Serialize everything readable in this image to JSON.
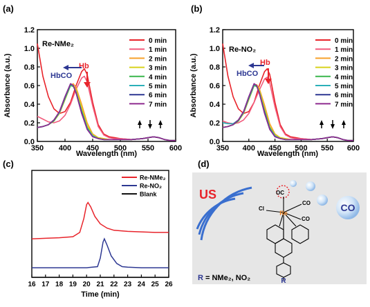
{
  "panels": {
    "a": {
      "label": "(a)",
      "name": "Re-NMe₂",
      "hb": "Hb",
      "hbco": "HbCO"
    },
    "b": {
      "label": "(b)",
      "name": "Re-NO₂",
      "hb": "Hb",
      "hbco": "HbCO"
    },
    "c": {
      "label": "(c)"
    },
    "d": {
      "label": "(d)",
      "us": "US",
      "co_bubble": "CO",
      "oc": "OC",
      "co1": "CO",
      "co2": "CO",
      "cl": "Cl",
      "re": "Re",
      "r_group": "R",
      "r_def_r": "R",
      "r_def_rest": "= NMe₂, NO₂"
    }
  },
  "legend_times": [
    "0 min",
    "1 min",
    "2 min",
    "3 min",
    "4 min",
    "5 min",
    "6 min",
    "7 min"
  ],
  "colors": {
    "times": [
      "#e8232a",
      "#f25b7c",
      "#f7a02a",
      "#d8d21b",
      "#39b54a",
      "#2ab0b8",
      "#2c3792",
      "#8e2a8f"
    ],
    "re_nme2": "#e8232a",
    "re_no2": "#2c3792",
    "blank": "#111111",
    "arrow_blue": "#2c3792",
    "arrow_red": "#e8232a",
    "scheme_bg": "#e6e6e6"
  },
  "chart_data": [
    {
      "type": "line",
      "panel": "a",
      "title": "",
      "xlabel": "Wavelength (nm)",
      "ylabel": "Absorbance (a.u.)",
      "xlim": [
        350,
        600
      ],
      "ylim": [
        0,
        1.2
      ],
      "xticks": [
        350,
        400,
        450,
        500,
        550,
        600
      ],
      "yticks": [
        0.0,
        0.2,
        0.4,
        0.6,
        0.8,
        1.0,
        1.2
      ],
      "series": [
        {
          "name": "0 min",
          "x": [
            350,
            360,
            370,
            380,
            390,
            400,
            410,
            420,
            430,
            435,
            440,
            450,
            460,
            470,
            480,
            490,
            500,
            520,
            540,
            550,
            560,
            570,
            580,
            590,
            600
          ],
          "y": [
            1.05,
            0.7,
            0.48,
            0.35,
            0.3,
            0.32,
            0.42,
            0.6,
            0.75,
            0.78,
            0.72,
            0.42,
            0.18,
            0.08,
            0.05,
            0.04,
            0.03,
            0.02,
            0.03,
            0.04,
            0.05,
            0.04,
            0.02,
            0.01,
            0.01
          ]
        },
        {
          "name": "1 min",
          "x": [
            350,
            360,
            370,
            380,
            390,
            400,
            410,
            420,
            430,
            435,
            440,
            450,
            460,
            470,
            480,
            490,
            500,
            520,
            540,
            550,
            560,
            570,
            580,
            590,
            600
          ],
          "y": [
            0.27,
            0.24,
            0.21,
            0.2,
            0.22,
            0.28,
            0.4,
            0.56,
            0.68,
            0.7,
            0.64,
            0.38,
            0.16,
            0.07,
            0.04,
            0.03,
            0.03,
            0.02,
            0.03,
            0.04,
            0.05,
            0.04,
            0.02,
            0.01,
            0.01
          ]
        },
        {
          "name": "2 min",
          "x": [
            350,
            360,
            370,
            380,
            390,
            400,
            410,
            415,
            420,
            430,
            440,
            450,
            460,
            470,
            480,
            490,
            500,
            520,
            540,
            550,
            560,
            570,
            580,
            590,
            600
          ],
          "y": [
            0.15,
            0.16,
            0.18,
            0.22,
            0.3,
            0.45,
            0.6,
            0.62,
            0.58,
            0.4,
            0.2,
            0.08,
            0.04,
            0.03,
            0.02,
            0.02,
            0.02,
            0.02,
            0.03,
            0.04,
            0.05,
            0.04,
            0.02,
            0.01,
            0.01
          ]
        },
        {
          "name": "3 min",
          "x": [
            350,
            360,
            370,
            380,
            390,
            400,
            410,
            415,
            420,
            430,
            440,
            450,
            460,
            470,
            480,
            490,
            500,
            520,
            540,
            550,
            560,
            570,
            580,
            590,
            600
          ],
          "y": [
            0.15,
            0.16,
            0.18,
            0.22,
            0.3,
            0.45,
            0.6,
            0.6,
            0.55,
            0.36,
            0.17,
            0.07,
            0.04,
            0.03,
            0.02,
            0.02,
            0.02,
            0.02,
            0.03,
            0.04,
            0.05,
            0.04,
            0.02,
            0.01,
            0.01
          ]
        },
        {
          "name": "4 min",
          "x": [
            350,
            360,
            370,
            380,
            390,
            400,
            410,
            415,
            420,
            430,
            440,
            450,
            460,
            470,
            480,
            490,
            500,
            520,
            540,
            550,
            560,
            570,
            580,
            590,
            600
          ],
          "y": [
            0.15,
            0.16,
            0.18,
            0.22,
            0.31,
            0.46,
            0.6,
            0.59,
            0.53,
            0.33,
            0.15,
            0.06,
            0.03,
            0.02,
            0.02,
            0.02,
            0.02,
            0.02,
            0.03,
            0.04,
            0.05,
            0.04,
            0.02,
            0.01,
            0.01
          ]
        },
        {
          "name": "5 min",
          "x": [
            350,
            360,
            370,
            380,
            390,
            400,
            410,
            415,
            420,
            430,
            440,
            450,
            460,
            470,
            480,
            490,
            500,
            520,
            540,
            550,
            560,
            570,
            580,
            590,
            600
          ],
          "y": [
            0.15,
            0.16,
            0.18,
            0.23,
            0.31,
            0.47,
            0.61,
            0.6,
            0.53,
            0.32,
            0.14,
            0.06,
            0.03,
            0.02,
            0.02,
            0.02,
            0.02,
            0.02,
            0.03,
            0.04,
            0.05,
            0.04,
            0.02,
            0.01,
            0.01
          ]
        },
        {
          "name": "6 min",
          "x": [
            350,
            360,
            370,
            380,
            390,
            400,
            410,
            415,
            420,
            430,
            440,
            450,
            460,
            470,
            480,
            490,
            500,
            520,
            540,
            550,
            560,
            570,
            580,
            590,
            600
          ],
          "y": [
            0.15,
            0.16,
            0.18,
            0.23,
            0.32,
            0.48,
            0.62,
            0.6,
            0.52,
            0.31,
            0.13,
            0.05,
            0.03,
            0.02,
            0.02,
            0.02,
            0.02,
            0.02,
            0.03,
            0.04,
            0.05,
            0.04,
            0.02,
            0.01,
            0.01
          ]
        },
        {
          "name": "7 min",
          "x": [
            350,
            360,
            370,
            380,
            390,
            400,
            410,
            415,
            420,
            430,
            440,
            450,
            460,
            470,
            480,
            490,
            500,
            520,
            540,
            550,
            560,
            570,
            580,
            590,
            600
          ],
          "y": [
            0.15,
            0.16,
            0.18,
            0.23,
            0.32,
            0.48,
            0.62,
            0.6,
            0.52,
            0.3,
            0.13,
            0.05,
            0.03,
            0.02,
            0.02,
            0.02,
            0.02,
            0.02,
            0.03,
            0.04,
            0.05,
            0.04,
            0.02,
            0.01,
            0.01
          ]
        }
      ]
    },
    {
      "type": "line",
      "panel": "b",
      "title": "",
      "xlabel": "Wavelength (nm)",
      "ylabel": "Absorbance (a.u.)",
      "xlim": [
        350,
        600
      ],
      "ylim": [
        0,
        1.2
      ],
      "xticks": [
        350,
        400,
        450,
        500,
        550,
        600
      ],
      "yticks": [
        0.0,
        0.2,
        0.4,
        0.6,
        0.8,
        1.0,
        1.2
      ],
      "series": [
        {
          "name": "0 min",
          "x": [
            350,
            360,
            370,
            380,
            390,
            400,
            410,
            420,
            430,
            435,
            440,
            450,
            460,
            470,
            480,
            490,
            500,
            520,
            540,
            550,
            560,
            570,
            580,
            590,
            600
          ],
          "y": [
            1.05,
            0.7,
            0.48,
            0.35,
            0.3,
            0.32,
            0.42,
            0.6,
            0.75,
            0.78,
            0.72,
            0.42,
            0.18,
            0.08,
            0.05,
            0.04,
            0.03,
            0.02,
            0.03,
            0.04,
            0.05,
            0.04,
            0.02,
            0.01,
            0.01
          ]
        },
        {
          "name": "1 min",
          "x": [
            350,
            360,
            370,
            380,
            390,
            400,
            410,
            420,
            430,
            435,
            440,
            450,
            460,
            470,
            480,
            490,
            500,
            520,
            540,
            550,
            560,
            570,
            580,
            590,
            600
          ],
          "y": [
            0.22,
            0.2,
            0.19,
            0.2,
            0.23,
            0.3,
            0.42,
            0.55,
            0.67,
            0.69,
            0.63,
            0.37,
            0.16,
            0.07,
            0.04,
            0.03,
            0.03,
            0.02,
            0.03,
            0.04,
            0.05,
            0.04,
            0.02,
            0.01,
            0.01
          ]
        },
        {
          "name": "2 min",
          "x": [
            350,
            360,
            370,
            380,
            390,
            400,
            410,
            415,
            420,
            430,
            440,
            450,
            460,
            470,
            480,
            490,
            500,
            520,
            540,
            550,
            560,
            570,
            580,
            590,
            600
          ],
          "y": [
            0.15,
            0.16,
            0.18,
            0.22,
            0.3,
            0.45,
            0.6,
            0.61,
            0.57,
            0.39,
            0.19,
            0.08,
            0.04,
            0.03,
            0.02,
            0.02,
            0.02,
            0.02,
            0.03,
            0.04,
            0.05,
            0.04,
            0.02,
            0.01,
            0.01
          ]
        },
        {
          "name": "3 min",
          "x": [
            350,
            360,
            370,
            380,
            390,
            400,
            410,
            415,
            420,
            430,
            440,
            450,
            460,
            470,
            480,
            490,
            500,
            520,
            540,
            550,
            560,
            570,
            580,
            590,
            600
          ],
          "y": [
            0.15,
            0.16,
            0.18,
            0.22,
            0.3,
            0.45,
            0.6,
            0.6,
            0.55,
            0.35,
            0.16,
            0.07,
            0.04,
            0.03,
            0.02,
            0.02,
            0.02,
            0.02,
            0.03,
            0.04,
            0.05,
            0.04,
            0.02,
            0.01,
            0.01
          ]
        },
        {
          "name": "4 min",
          "x": [
            350,
            360,
            370,
            380,
            390,
            400,
            410,
            415,
            420,
            430,
            440,
            450,
            460,
            470,
            480,
            490,
            500,
            520,
            540,
            550,
            560,
            570,
            580,
            590,
            600
          ],
          "y": [
            0.15,
            0.16,
            0.18,
            0.22,
            0.31,
            0.46,
            0.6,
            0.59,
            0.53,
            0.33,
            0.15,
            0.06,
            0.03,
            0.02,
            0.02,
            0.02,
            0.02,
            0.02,
            0.03,
            0.04,
            0.05,
            0.04,
            0.02,
            0.01,
            0.01
          ]
        },
        {
          "name": "5 min",
          "x": [
            350,
            360,
            370,
            380,
            390,
            400,
            410,
            415,
            420,
            430,
            440,
            450,
            460,
            470,
            480,
            490,
            500,
            520,
            540,
            550,
            560,
            570,
            580,
            590,
            600
          ],
          "y": [
            0.2,
            0.19,
            0.19,
            0.23,
            0.31,
            0.47,
            0.61,
            0.6,
            0.53,
            0.32,
            0.14,
            0.06,
            0.03,
            0.02,
            0.02,
            0.02,
            0.02,
            0.02,
            0.03,
            0.04,
            0.05,
            0.04,
            0.02,
            0.01,
            0.01
          ]
        },
        {
          "name": "6 min",
          "x": [
            350,
            360,
            370,
            380,
            390,
            400,
            410,
            415,
            420,
            430,
            440,
            450,
            460,
            470,
            480,
            490,
            500,
            520,
            540,
            550,
            560,
            570,
            580,
            590,
            600
          ],
          "y": [
            0.15,
            0.16,
            0.18,
            0.23,
            0.32,
            0.48,
            0.62,
            0.6,
            0.52,
            0.31,
            0.13,
            0.05,
            0.03,
            0.02,
            0.02,
            0.02,
            0.02,
            0.02,
            0.03,
            0.04,
            0.05,
            0.04,
            0.02,
            0.01,
            0.01
          ]
        },
        {
          "name": "7 min",
          "x": [
            350,
            360,
            370,
            380,
            390,
            400,
            410,
            415,
            420,
            430,
            440,
            450,
            460,
            470,
            480,
            490,
            500,
            520,
            540,
            550,
            560,
            570,
            580,
            590,
            600
          ],
          "y": [
            0.15,
            0.16,
            0.18,
            0.23,
            0.32,
            0.48,
            0.62,
            0.6,
            0.52,
            0.3,
            0.13,
            0.05,
            0.03,
            0.02,
            0.02,
            0.02,
            0.02,
            0.02,
            0.03,
            0.04,
            0.05,
            0.04,
            0.02,
            0.01,
            0.01
          ]
        }
      ]
    },
    {
      "type": "line",
      "panel": "c",
      "title": "",
      "xlabel": "Time (min)",
      "ylabel": "",
      "xlim": [
        16,
        26
      ],
      "ylim": [
        0,
        1
      ],
      "xticks": [
        16,
        17,
        18,
        19,
        20,
        21,
        22,
        23,
        24,
        25,
        26
      ],
      "grid": false,
      "series": [
        {
          "name": "Re-NMe₂",
          "x": [
            16,
            17,
            18,
            19,
            19.5,
            19.8,
            20.0,
            20.1,
            20.3,
            20.6,
            21.0,
            21.5,
            22,
            23,
            24,
            25,
            26
          ],
          "y": [
            0.36,
            0.365,
            0.37,
            0.38,
            0.42,
            0.55,
            0.68,
            0.7,
            0.66,
            0.57,
            0.5,
            0.46,
            0.44,
            0.43,
            0.425,
            0.42,
            0.42
          ]
        },
        {
          "name": "Re-NO₂",
          "x": [
            16,
            17,
            18,
            19,
            20,
            20.8,
            21.0,
            21.2,
            21.3,
            21.5,
            21.8,
            22.2,
            22.6,
            23,
            24,
            25,
            26
          ],
          "y": [
            0.09,
            0.09,
            0.09,
            0.09,
            0.09,
            0.1,
            0.18,
            0.33,
            0.36,
            0.3,
            0.2,
            0.13,
            0.1,
            0.095,
            0.09,
            0.09,
            0.09
          ]
        },
        {
          "name": "Blank",
          "x": [
            16,
            26
          ],
          "y": [
            0.0,
            0.0
          ]
        }
      ]
    }
  ]
}
